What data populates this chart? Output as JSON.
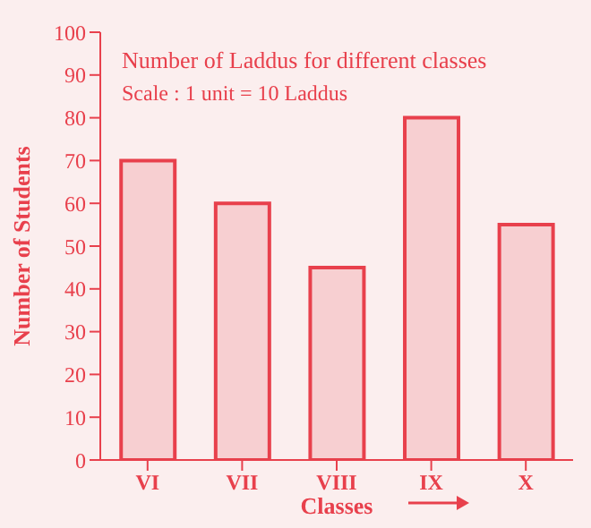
{
  "chart_data": {
    "type": "bar",
    "title": "Number of  Laddus for different classes",
    "subtitle": "Scale : 1 unit = 10 Laddus",
    "xlabel": "Classes",
    "ylabel": "Number of Students",
    "categories": [
      "VI",
      "VII",
      "VIII",
      "IX",
      "X"
    ],
    "values": [
      70,
      60,
      45,
      80,
      55
    ],
    "color": "#e8404c",
    "ylim": [
      0,
      100
    ],
    "yticks": [
      0,
      10,
      20,
      30,
      40,
      50,
      60,
      70,
      80,
      90,
      100
    ]
  }
}
